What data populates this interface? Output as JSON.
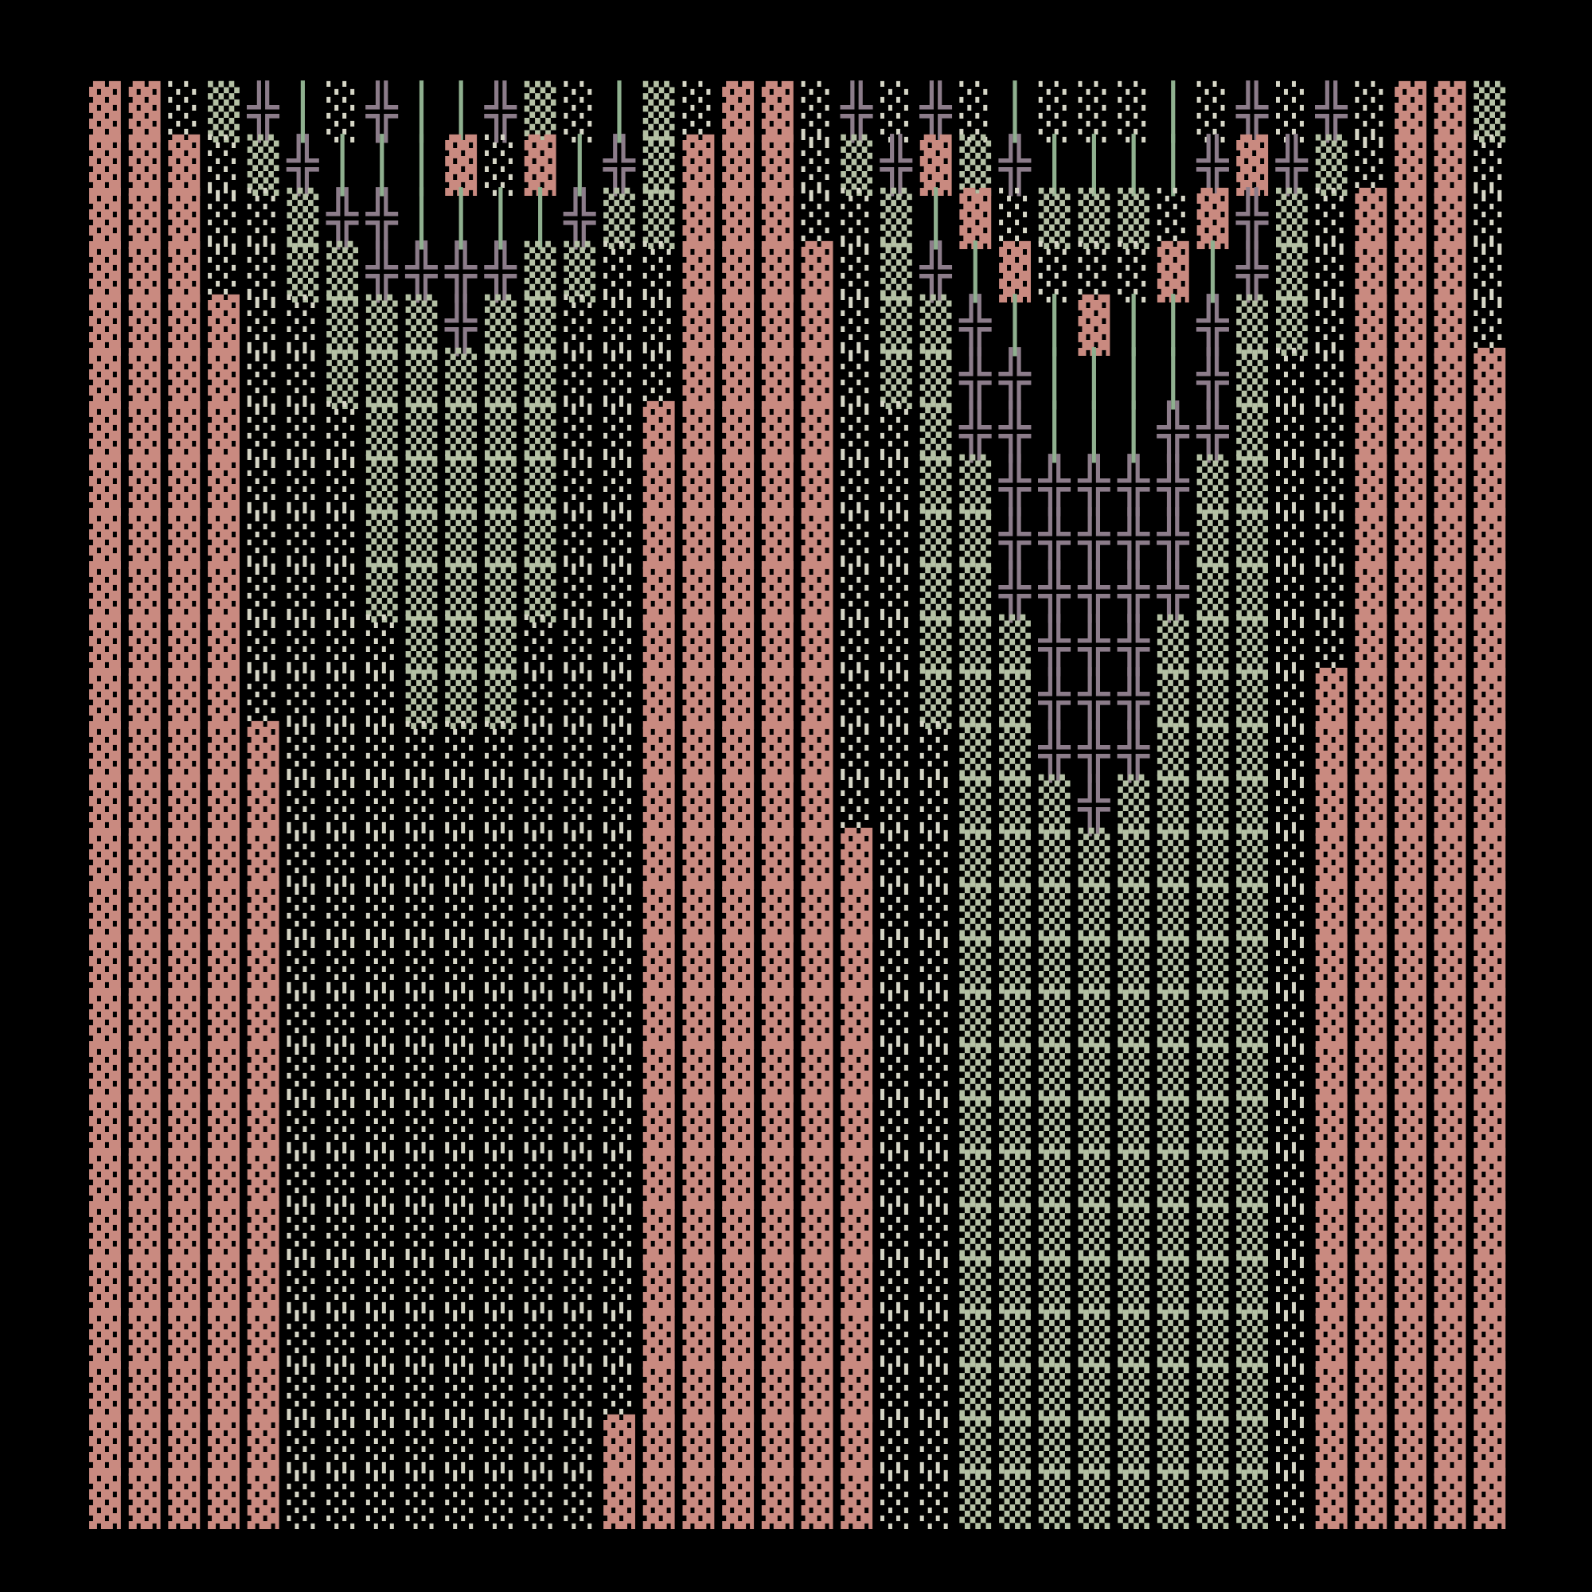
{
  "grid": {
    "rows": [
      "▓▓░▒╬│░╬││╬▒░│▒░▓▓░╬░╬░│░░░│░╬░╬░▓▓▒",
      "▓▓▓░▒╬│││▓░▓│╬▒▓▓▓░▒╬▓▒╬││││╬▓╬▒░▓▓░",
      "▓▓▓░░▒╬╬││││╬▒▒▓▓▓░░▒│▓░▒▒▒░▓╬▒░▓▓▓░",
      "▓▓▓░░▒▒╬╬╬╬▒▒░░▓▓▓▓░▒╬│▓░░░▓│╬▒░▓▓▓░",
      "▓▓▓▓░░▒▒▒╬▒▒░░░▓▓▓▓░▒▒╬││▓││╬▒▒░▓▓▓░",
      "▓▓▓▓░░▒▒▒▒▒▒░░░▓▓▓▓░▒▒╬╬││││╬▒░░▓▓▓▓",
      "▓▓▓▓░░░▒▒▒▒▒░░▓▓▓▓▓░░▒╬╬│││╬╬▒░░▓▓▓▓",
      "▓▓▓▓░░░▒▒▒▒▒░░▓▓▓▓▓░░▒▒╬╬╬╬╬▒▒░░▓▓▓▓",
      "▓▓▓▓░░░▒▒▒▒▒░░▓▓▓▓▓░░▒▒╬╬╬╬╬▒▒░░▓▓▓▓",
      "▓▓▓▓░░░▒▒▒▒▒░░▓▓▓▓▓░░▒▒╬╬╬╬╬▒▒░░▓▓▓▓",
      "▓▓▓▓░░░░▒▒▒░░░▓▓▓▓▓░░▒▒▒╬╬╬▒▒▒░░▓▓▓▓",
      "▓▓▓▓░░░░▒▒▒░░░▓▓▓▓▓░░▒▒▒╬╬╬▒▒▒░▓▓▓▓▓",
      "▓▓▓▓▓░░░░░░░░░▓▓▓▓▓░░░▒▒╬╬╬▒▒▒░▓▓▓▓▓",
      "▓▓▓▓▓░░░░░░░░░▓▓▓▓▓░░░▒▒▒╬▒▒▒▒░▓▓▓▓▓",
      "▓▓▓▓▓░░░░░░░░░▓▓▓▓▓▓░░▒▒▒▒▒▒▒▒░▓▓▓▓▓",
      "▓▓▓▓▓░░░░░░░░░▓▓▓▓▓▓░░▒▒▒▒▒▒▒▒░▓▓▓▓▓",
      "▓▓▓▓▓░░░░░░░░░▓▓▓▓▓▓░░▒▒▒▒▒▒▒▒░▓▓▓▓▓",
      "▓▓▓▓▓░░░░░░░░░▓▓▓▓▓▓░░▒▒▒▒▒▒▒▒░▓▓▓▓▓",
      "▓▓▓▓▓░░░░░░░░░▓▓▓▓▓▓░░▒▒▒▒▒▒▒▒░▓▓▓▓▓",
      "▓▓▓▓▓░░░░░░░░░▓▓▓▓▓▓░░▒▒▒▒▒▒▒▒░▓▓▓▓▓",
      "▓▓▓▓▓░░░░░░░░░▓▓▓▓▓▓░░▒▒▒▒▒▒▒▒░▓▓▓▓▓",
      "▓▓▓▓▓░░░░░░░░░▓▓▓▓▓▓░░▒▒▒▒▒▒▒▒░▓▓▓▓▓",
      "▓▓▓▓▓░░░░░░░░░▓▓▓▓▓▓░░▒▒▒▒▒▒▒▒░▓▓▓▓▓",
      "▓▓▓▓▓░░░░░░░░░▓▓▓▓▓▓░░▒▒▒▒▒▒▒▒░▓▓▓▓▓",
      "▓▓▓▓▓░░░░░░░░░▓▓▓▓▓▓░░▒▒▒▒▒▒▒▒░▓▓▓▓▓",
      "▓▓▓▓▓░░░░░░░░▓▓▓▓▓▓▓░░▒▒▒▒▒▒▒▒░▓▓▓▓▓",
      "▓▓▓▓▓░░░░░░░░▓▓▓▓▓▓▓░░▒▒▒▒▒▒▒▒░▓▓▓▓▓"
    ],
    "colors": {
      "▓": "#c98a80",
      "░": "#d6d6c6",
      "▒": "#b4c0a4",
      "╬": "#8c7c8a",
      "│": "#8fb08f"
    }
  }
}
